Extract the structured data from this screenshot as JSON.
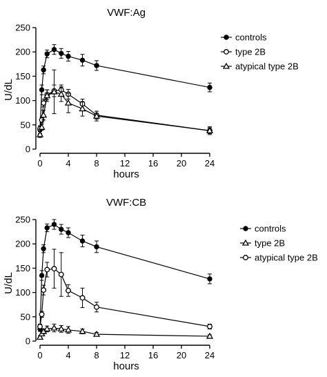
{
  "chart_data": [
    {
      "type": "line",
      "title": "VWF:Ag",
      "xlabel": "hours",
      "ylabel": "U/dL",
      "xlim": [
        0,
        24
      ],
      "ylim": [
        0,
        250
      ],
      "xticks": [
        0,
        4,
        8,
        12,
        16,
        20,
        24
      ],
      "yticks": [
        0,
        50,
        100,
        150,
        200,
        250
      ],
      "legend_position": "top-right",
      "series": [
        {
          "name": "controls",
          "marker": "filled-circle",
          "points": [
            {
              "x": 0,
              "y": 40,
              "err": 8
            },
            {
              "x": 0.25,
              "y": 122,
              "err": 10
            },
            {
              "x": 0.5,
              "y": 163,
              "err": 8
            },
            {
              "x": 1,
              "y": 196,
              "err": 8
            },
            {
              "x": 2,
              "y": 205,
              "err": 10
            },
            {
              "x": 3,
              "y": 197,
              "err": 10
            },
            {
              "x": 4,
              "y": 191,
              "err": 10
            },
            {
              "x": 6,
              "y": 183,
              "err": 12
            },
            {
              "x": 8,
              "y": 172,
              "err": 10
            },
            {
              "x": 24,
              "y": 127,
              "err": 9
            }
          ]
        },
        {
          "name": "type 2B",
          "marker": "open-circle",
          "points": [
            {
              "x": 0,
              "y": 42,
              "err": 6
            },
            {
              "x": 0.25,
              "y": 60,
              "err": 6
            },
            {
              "x": 0.5,
              "y": 95,
              "err": 8
            },
            {
              "x": 1,
              "y": 112,
              "err": 10
            },
            {
              "x": 2,
              "y": 120,
              "err": 12
            },
            {
              "x": 3,
              "y": 122,
              "err": 10
            },
            {
              "x": 4,
              "y": 113,
              "err": 10
            },
            {
              "x": 6,
              "y": 93,
              "err": 10
            },
            {
              "x": 8,
              "y": 70,
              "err": 8
            },
            {
              "x": 24,
              "y": 38,
              "err": 6
            }
          ]
        },
        {
          "name": "atypical type 2B",
          "marker": "open-triangle",
          "points": [
            {
              "x": 0,
              "y": 30,
              "err": 6
            },
            {
              "x": 0.25,
              "y": 45,
              "err": 6
            },
            {
              "x": 0.5,
              "y": 70,
              "err": 10
            },
            {
              "x": 1,
              "y": 110,
              "err": 12
            },
            {
              "x": 2,
              "y": 118,
              "err": 45
            },
            {
              "x": 3,
              "y": 113,
              "err": 15
            },
            {
              "x": 4,
              "y": 95,
              "err": 20
            },
            {
              "x": 6,
              "y": 83,
              "err": 15
            },
            {
              "x": 8,
              "y": 68,
              "err": 10
            },
            {
              "x": 24,
              "y": 38,
              "err": 8
            }
          ]
        }
      ]
    },
    {
      "type": "line",
      "title": "VWF:CB",
      "xlabel": "hours",
      "ylabel": "U/dL",
      "xlim": [
        0,
        24
      ],
      "ylim": [
        0,
        250
      ],
      "xticks": [
        0,
        4,
        8,
        12,
        16,
        20,
        24
      ],
      "yticks": [
        0,
        50,
        100,
        150,
        200,
        250
      ],
      "legend_position": "top-right",
      "series": [
        {
          "name": "controls",
          "marker": "filled-circle",
          "points": [
            {
              "x": 0,
              "y": 25,
              "err": 5
            },
            {
              "x": 0.25,
              "y": 135,
              "err": 10
            },
            {
              "x": 0.5,
              "y": 190,
              "err": 8
            },
            {
              "x": 1,
              "y": 233,
              "err": 8
            },
            {
              "x": 2,
              "y": 240,
              "err": 10
            },
            {
              "x": 3,
              "y": 230,
              "err": 10
            },
            {
              "x": 4,
              "y": 223,
              "err": 10
            },
            {
              "x": 6,
              "y": 206,
              "err": 12
            },
            {
              "x": 8,
              "y": 194,
              "err": 12
            },
            {
              "x": 24,
              "y": 128,
              "err": 10
            }
          ]
        },
        {
          "name": "type 2B",
          "marker": "open-triangle",
          "points": [
            {
              "x": 0,
              "y": 8,
              "err": 3
            },
            {
              "x": 0.25,
              "y": 15,
              "err": 4
            },
            {
              "x": 0.5,
              "y": 20,
              "err": 5
            },
            {
              "x": 1,
              "y": 25,
              "err": 6
            },
            {
              "x": 2,
              "y": 27,
              "err": 8
            },
            {
              "x": 3,
              "y": 25,
              "err": 7
            },
            {
              "x": 4,
              "y": 23,
              "err": 7
            },
            {
              "x": 6,
              "y": 20,
              "err": 5
            },
            {
              "x": 8,
              "y": 14,
              "err": 4
            },
            {
              "x": 24,
              "y": 10,
              "err": 3
            }
          ]
        },
        {
          "name": "atypical type 2B",
          "marker": "open-circle",
          "points": [
            {
              "x": 0,
              "y": 30,
              "err": 5
            },
            {
              "x": 0.25,
              "y": 55,
              "err": 6
            },
            {
              "x": 0.5,
              "y": 105,
              "err": 10
            },
            {
              "x": 1,
              "y": 147,
              "err": 15
            },
            {
              "x": 2,
              "y": 149,
              "err": 40
            },
            {
              "x": 3,
              "y": 137,
              "err": 45
            },
            {
              "x": 4,
              "y": 104,
              "err": 12
            },
            {
              "x": 6,
              "y": 89,
              "err": 20
            },
            {
              "x": 8,
              "y": 70,
              "err": 10
            },
            {
              "x": 24,
              "y": 30,
              "err": 5
            }
          ]
        }
      ]
    }
  ]
}
